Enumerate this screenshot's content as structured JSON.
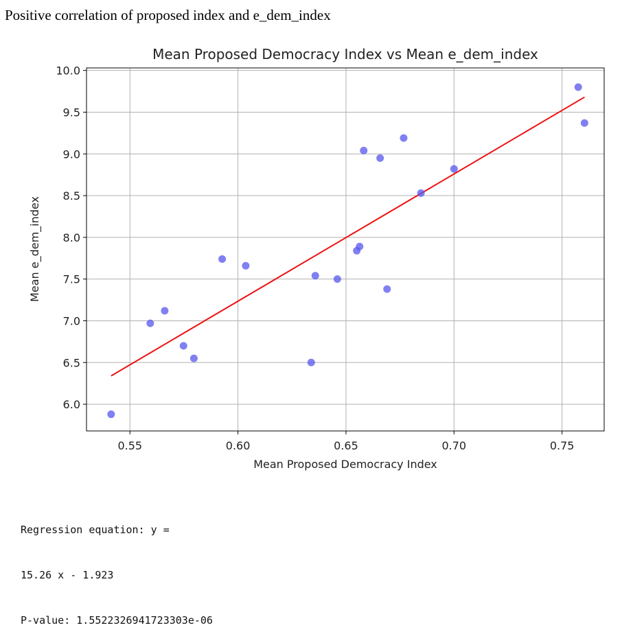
{
  "page": {
    "heading": "Positive correlation of proposed index and e_dem_index"
  },
  "output": {
    "line1": "Regression equation: y =",
    "line2": "15.26 x - 1.923",
    "line3": "P-value: 1.5522326941723303e-06"
  },
  "chart_data": {
    "type": "scatter",
    "title": "Mean Proposed Democracy Index vs Mean e_dem_index",
    "xlabel": "Mean Proposed Democracy Index",
    "ylabel": "Mean e_dem_index",
    "xlim": [
      0.5299,
      0.7695
    ],
    "ylim": [
      5.68,
      10.03
    ],
    "grid": true,
    "x_ticks": [
      {
        "value": 0.55,
        "label": "0.55"
      },
      {
        "value": 0.6,
        "label": "0.60"
      },
      {
        "value": 0.65,
        "label": "0.65"
      },
      {
        "value": 0.7,
        "label": "0.70"
      },
      {
        "value": 0.75,
        "label": "0.75"
      }
    ],
    "y_ticks": [
      {
        "value": 6.0,
        "label": "6.0"
      },
      {
        "value": 6.5,
        "label": "6.5"
      },
      {
        "value": 7.0,
        "label": "7.0"
      },
      {
        "value": 7.5,
        "label": "7.5"
      },
      {
        "value": 8.0,
        "label": "8.0"
      },
      {
        "value": 8.5,
        "label": "8.5"
      },
      {
        "value": 9.0,
        "label": "9.0"
      },
      {
        "value": 9.5,
        "label": "9.5"
      },
      {
        "value": 10.0,
        "label": "10.0"
      }
    ],
    "points": [
      {
        "x": 0.5413,
        "y": 5.88
      },
      {
        "x": 0.5594,
        "y": 6.97
      },
      {
        "x": 0.5661,
        "y": 7.12
      },
      {
        "x": 0.5748,
        "y": 6.7
      },
      {
        "x": 0.5796,
        "y": 6.55
      },
      {
        "x": 0.5927,
        "y": 7.74
      },
      {
        "x": 0.6036,
        "y": 7.66
      },
      {
        "x": 0.6339,
        "y": 6.5
      },
      {
        "x": 0.6358,
        "y": 7.54
      },
      {
        "x": 0.646,
        "y": 7.5
      },
      {
        "x": 0.655,
        "y": 7.84
      },
      {
        "x": 0.6563,
        "y": 7.89
      },
      {
        "x": 0.6582,
        "y": 9.04
      },
      {
        "x": 0.6658,
        "y": 8.95
      },
      {
        "x": 0.669,
        "y": 7.38
      },
      {
        "x": 0.6767,
        "y": 9.19
      },
      {
        "x": 0.6847,
        "y": 8.53
      },
      {
        "x": 0.7,
        "y": 8.82
      },
      {
        "x": 0.7575,
        "y": 9.8
      },
      {
        "x": 0.7604,
        "y": 9.37
      }
    ],
    "regression_line": {
      "x": [
        0.5413,
        0.7604
      ],
      "y": [
        6.34,
        9.68
      ]
    },
    "colors": {
      "points": "#5555ee",
      "regression": "#ee1111",
      "grid": "#b0b0b0",
      "axes": "#000000"
    }
  }
}
